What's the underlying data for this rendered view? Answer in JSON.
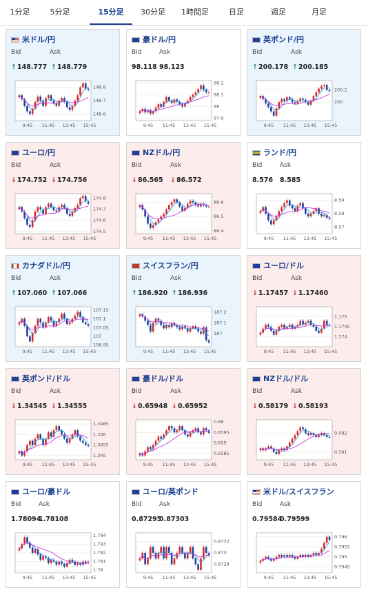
{
  "tabs": [
    {
      "label": "1分足",
      "active": false
    },
    {
      "label": "5分足",
      "active": false
    },
    {
      "label": "15分足",
      "active": true
    },
    {
      "label": "30分足",
      "active": false
    },
    {
      "label": "1時間足",
      "active": false
    },
    {
      "label": "日足",
      "active": false
    },
    {
      "label": "週足",
      "active": false
    },
    {
      "label": "月足",
      "active": false
    }
  ],
  "colors": {
    "up_candle": "#d62728",
    "down_candle": "#1f3f9a",
    "ma_fast": "#3a9bd8",
    "ma_slow": "#c63ad8",
    "up_bg": "#eaf4fd",
    "down_bg": "#fcecec"
  },
  "cards": [
    {
      "pair": "米ドル/円",
      "flag": "us-flag",
      "trend": "up",
      "bid_label": "Bid",
      "ask_label": "Ask",
      "bid": "148.777",
      "ask": "148.779"
    },
    {
      "pair": "豪ドル/円",
      "flag": "au-flag",
      "trend": "flat",
      "bid_label": "Bid",
      "ask_label": "Ask",
      "bid": "98.118",
      "ask": "98.123"
    },
    {
      "pair": "英ポンド/円",
      "flag": "uk-flag",
      "trend": "up",
      "bid_label": "Bid",
      "ask_label": "Ask",
      "bid": "200.178",
      "ask": "200.185"
    },
    {
      "pair": "ユーロ/円",
      "flag": "eu-flag",
      "trend": "down",
      "bid_label": "Bid",
      "ask_label": "Ask",
      "bid": "174.752",
      "ask": "174.756"
    },
    {
      "pair": "NZドル/円",
      "flag": "nz-flag",
      "trend": "down",
      "bid_label": "Bid",
      "ask_label": "Ask",
      "bid": "86.565",
      "ask": "86.572"
    },
    {
      "pair": "ランド/円",
      "flag": "za-flag",
      "trend": "flat",
      "bid_label": "Bid",
      "ask_label": "Ask",
      "bid": "8.576",
      "ask": "8.585"
    },
    {
      "pair": "カナダドル/円",
      "flag": "ca-flag",
      "trend": "up",
      "bid_label": "Bid",
      "ask_label": "Ask",
      "bid": "107.060",
      "ask": "107.066"
    },
    {
      "pair": "スイスフラン/円",
      "flag": "ch-flag",
      "trend": "up",
      "bid_label": "Bid",
      "ask_label": "Ask",
      "bid": "186.920",
      "ask": "186.936"
    },
    {
      "pair": "ユーロ/ドル",
      "flag": "eu-us-flag",
      "trend": "down",
      "bid_label": "Bid",
      "ask_label": "Ask",
      "bid": "1.17457",
      "ask": "1.17460"
    },
    {
      "pair": "英ポンド/ドル",
      "flag": "uk-us-flag",
      "trend": "down",
      "bid_label": "Bid",
      "ask_label": "Ask",
      "bid": "1.34545",
      "ask": "1.34555"
    },
    {
      "pair": "豪ドル/ドル",
      "flag": "au-us-flag",
      "trend": "down",
      "bid_label": "Bid",
      "ask_label": "Ask",
      "bid": "0.65948",
      "ask": "0.65952"
    },
    {
      "pair": "NZドル/ドル",
      "flag": "nz-us-flag",
      "trend": "down",
      "bid_label": "Bid",
      "ask_label": "Ask",
      "bid": "0.58179",
      "ask": "0.58193"
    },
    {
      "pair": "ユーロ/豪ドル",
      "flag": "eu-au-flag",
      "trend": "flat",
      "bid_label": "Bid",
      "ask_label": "Ask",
      "bid": "1.78094",
      "ask": "1.78108"
    },
    {
      "pair": "ユーロ/英ポンド",
      "flag": "eu-uk-flag",
      "trend": "flat",
      "bid_label": "Bid",
      "ask_label": "Ask",
      "bid": "0.87295",
      "ask": "0.87303"
    },
    {
      "pair": "米ドル/スイスフラン",
      "flag": "us-ch-flag",
      "trend": "flat",
      "bid_label": "Bid",
      "ask_label": "Ask",
      "bid": "0.79584",
      "ask": "0.79599"
    }
  ],
  "chart_data": [
    {
      "type": "candlestick",
      "x_ticks": [
        "9:45",
        "11:45",
        "13:45",
        "15:45"
      ],
      "y_ticks": [
        "148.8",
        "148.7",
        "148.6"
      ],
      "ylim": [
        148.55,
        148.85
      ],
      "closes": [
        148.74,
        148.71,
        148.66,
        148.62,
        148.6,
        148.64,
        148.69,
        148.73,
        148.7,
        148.66,
        148.72,
        148.74,
        148.7,
        148.68,
        148.66,
        148.7,
        148.72,
        148.69,
        148.65,
        148.63,
        148.66,
        148.7,
        148.74,
        148.8,
        148.83,
        148.79,
        148.78
      ]
    },
    {
      "type": "candlestick",
      "x_ticks": [
        "9:45",
        "11:45",
        "13:45",
        "15:45"
      ],
      "y_ticks": [
        "98.2",
        "98.1",
        "98",
        "97.9"
      ],
      "ylim": [
        97.88,
        98.22
      ],
      "closes": [
        97.96,
        97.98,
        97.95,
        97.97,
        97.94,
        97.96,
        97.99,
        98.02,
        98.0,
        98.04,
        98.08,
        98.05,
        98.03,
        98.06,
        98.04,
        98.02,
        98.0,
        98.03,
        98.05,
        98.08,
        98.1,
        98.12,
        98.15,
        98.18,
        98.14,
        98.12,
        98.12
      ]
    },
    {
      "type": "candlestick",
      "x_ticks": [
        "9:45",
        "11:45",
        "13:45",
        "15:45"
      ],
      "y_ticks": [
        "200.2",
        "200"
      ],
      "ylim": [
        199.7,
        200.35
      ],
      "closes": [
        200.1,
        200.05,
        199.98,
        199.92,
        199.85,
        199.78,
        199.9,
        200.0,
        200.05,
        200.02,
        200.08,
        200.05,
        200.0,
        199.98,
        200.02,
        200.06,
        200.04,
        200.0,
        199.96,
        200.02,
        200.1,
        200.16,
        200.22,
        200.26,
        200.28,
        200.2,
        200.18
      ]
    },
    {
      "type": "candlestick",
      "x_ticks": [
        "9:45",
        "11:45",
        "13:45",
        "15:45"
      ],
      "y_ticks": [
        "174.8",
        "174.7",
        "174.6",
        "174.5"
      ],
      "ylim": [
        174.48,
        174.84
      ],
      "closes": [
        174.72,
        174.68,
        174.62,
        174.56,
        174.54,
        174.6,
        174.68,
        174.72,
        174.7,
        174.66,
        174.72,
        174.75,
        174.72,
        174.69,
        174.68,
        174.72,
        174.74,
        174.71,
        174.66,
        174.64,
        174.68,
        174.71,
        174.74,
        174.8,
        174.82,
        174.77,
        174.75
      ]
    },
    {
      "type": "candlestick",
      "x_ticks": [
        "9:45",
        "11:45",
        "13:45",
        "15:45"
      ],
      "y_ticks": [
        "86.6",
        "86.5",
        "86.4"
      ],
      "ylim": [
        86.38,
        86.66
      ],
      "closes": [
        86.58,
        86.55,
        86.5,
        86.45,
        86.42,
        86.44,
        86.46,
        86.48,
        86.5,
        86.52,
        86.55,
        86.58,
        86.6,
        86.62,
        86.6,
        86.57,
        86.54,
        86.56,
        86.59,
        86.61,
        86.6,
        86.58,
        86.57,
        86.59,
        86.58,
        86.57,
        86.57
      ]
    },
    {
      "type": "candlestick",
      "x_ticks": [
        "9:45",
        "11:45",
        "13:45",
        "15:45"
      ],
      "y_ticks": [
        "8.59",
        "8.58",
        "8.57"
      ],
      "ylim": [
        8.565,
        8.595
      ],
      "closes": [
        8.582,
        8.585,
        8.58,
        8.575,
        8.572,
        8.575,
        8.578,
        8.582,
        8.585,
        8.588,
        8.59,
        8.586,
        8.584,
        8.582,
        8.586,
        8.588,
        8.584,
        8.58,
        8.578,
        8.58,
        8.582,
        8.584,
        8.58,
        8.578,
        8.579,
        8.577,
        8.576
      ]
    },
    {
      "type": "candlestick",
      "x_ticks": [
        "9:45",
        "11:45",
        "13:45",
        "15:45"
      ],
      "y_ticks": [
        "107.15",
        "107.1",
        "107.05",
        "107",
        "106.95"
      ],
      "ylim": [
        106.94,
        107.17
      ],
      "closes": [
        107.08,
        107.1,
        107.06,
        107.0,
        106.97,
        107.02,
        107.06,
        107.1,
        107.08,
        107.05,
        107.08,
        107.11,
        107.09,
        107.06,
        107.08,
        107.1,
        107.13,
        107.1,
        107.07,
        107.08,
        107.1,
        107.12,
        107.14,
        107.11,
        107.08,
        107.07,
        107.06
      ]
    },
    {
      "type": "candlestick",
      "x_ticks": [
        "9:45",
        "11:45",
        "13:45",
        "15:45"
      ],
      "y_ticks": [
        "187.2",
        "187.1",
        "187"
      ],
      "ylim": [
        186.88,
        187.25
      ],
      "closes": [
        187.18,
        187.16,
        187.12,
        187.08,
        187.02,
        187.1,
        187.14,
        187.12,
        187.08,
        187.05,
        187.08,
        187.06,
        187.1,
        187.08,
        187.06,
        187.04,
        187.07,
        187.05,
        187.02,
        187.05,
        187.07,
        187.05,
        187.02,
        187.0,
        187.06,
        186.94,
        186.92
      ]
    },
    {
      "type": "candlestick",
      "x_ticks": [
        "9:45",
        "11:45",
        "13:45",
        "15:45"
      ],
      "y_ticks": [
        "1.175",
        "1.1745",
        "1.174"
      ],
      "ylim": [
        1.1735,
        1.1755
      ],
      "closes": [
        1.1742,
        1.1744,
        1.1746,
        1.1745,
        1.1743,
        1.1741,
        1.1743,
        1.1745,
        1.1746,
        1.1744,
        1.1745,
        1.1746,
        1.1744,
        1.1745,
        1.1746,
        1.1748,
        1.1746,
        1.1747,
        1.1748,
        1.1746,
        1.1745,
        1.1743,
        1.1742,
        1.1744,
        1.1748,
        1.1746,
        1.17457
      ]
    },
    {
      "type": "candlestick",
      "x_ticks": [
        "9:45",
        "11:45",
        "13:45",
        "15:45"
      ],
      "y_ticks": [
        "1.3465",
        "1.346",
        "1.3455",
        "1.345"
      ],
      "ylim": [
        1.3448,
        1.3467
      ],
      "closes": [
        1.3452,
        1.345,
        1.3452,
        1.3455,
        1.3457,
        1.3455,
        1.3458,
        1.346,
        1.3458,
        1.3455,
        1.3458,
        1.3461,
        1.3459,
        1.3462,
        1.3464,
        1.3462,
        1.346,
        1.3458,
        1.3456,
        1.3458,
        1.346,
        1.3462,
        1.3459,
        1.3457,
        1.3456,
        1.3455,
        1.34545
      ]
    },
    {
      "type": "candlestick",
      "x_ticks": [
        "9:45",
        "11:45",
        "13:45",
        "15:45"
      ],
      "y_ticks": [
        "0.66",
        "0.6595",
        "0.659",
        "0.6585"
      ],
      "ylim": [
        0.6582,
        0.6601
      ],
      "closes": [
        0.6585,
        0.6584,
        0.6586,
        0.6588,
        0.6587,
        0.6589,
        0.6591,
        0.6593,
        0.6592,
        0.6594,
        0.6596,
        0.6598,
        0.6597,
        0.6595,
        0.6596,
        0.6598,
        0.6596,
        0.6594,
        0.6593,
        0.6595,
        0.6596,
        0.6597,
        0.6595,
        0.6594,
        0.6597,
        0.6596,
        0.65948
      ]
    },
    {
      "type": "candlestick",
      "x_ticks": [
        "9:45",
        "11:45",
        "13:45",
        "15:45"
      ],
      "y_ticks": [
        "0.582",
        "0.581"
      ],
      "ylim": [
        0.5806,
        0.5827
      ],
      "closes": [
        0.5812,
        0.5811,
        0.5812,
        0.5813,
        0.5812,
        0.581,
        0.5809,
        0.5811,
        0.5812,
        0.5811,
        0.5813,
        0.5815,
        0.5817,
        0.5819,
        0.5821,
        0.5823,
        0.5822,
        0.582,
        0.5819,
        0.582,
        0.5819,
        0.5818,
        0.5819,
        0.582,
        0.5819,
        0.5818,
        0.58179
      ]
    },
    {
      "type": "candlestick",
      "x_ticks": [
        "9:45",
        "11:45",
        "13:45",
        "15:45"
      ],
      "y_ticks": [
        "1.784",
        "1.783",
        "1.782",
        "1.781",
        "1.78"
      ],
      "ylim": [
        1.7797,
        1.7843
      ],
      "closes": [
        1.7825,
        1.783,
        1.7838,
        1.7832,
        1.7826,
        1.782,
        1.7824,
        1.7818,
        1.7812,
        1.7816,
        1.7814,
        1.7808,
        1.7812,
        1.781,
        1.7806,
        1.781,
        1.7807,
        1.7804,
        1.7808,
        1.7812,
        1.781,
        1.7806,
        1.7808,
        1.7806,
        1.781,
        1.7808,
        1.78094
      ]
    },
    {
      "type": "candlestick",
      "x_ticks": [
        "9:45",
        "11:45",
        "13:45",
        "15:45"
      ],
      "y_ticks": [
        "0.8732",
        "0.873",
        "0.8728"
      ],
      "ylim": [
        0.87265,
        0.87335
      ],
      "closes": [
        0.8729,
        0.873,
        0.8728,
        0.8729,
        0.8731,
        0.873,
        0.8729,
        0.873,
        0.8731,
        0.8729,
        0.8731,
        0.873,
        0.8728,
        0.8729,
        0.873,
        0.8731,
        0.873,
        0.8729,
        0.873,
        0.8731,
        0.8729,
        0.8728,
        0.8727,
        0.8729,
        0.8731,
        0.873,
        0.87295
      ]
    },
    {
      "type": "candlestick",
      "x_ticks": [
        "9:45",
        "11:45",
        "13:45",
        "15:45"
      ],
      "y_ticks": [
        "0.796",
        "0.7955",
        "0.795",
        "0.7945"
      ],
      "ylim": [
        0.7942,
        0.7962
      ],
      "closes": [
        0.7948,
        0.7949,
        0.795,
        0.7949,
        0.7948,
        0.7949,
        0.795,
        0.7951,
        0.795,
        0.7951,
        0.795,
        0.7951,
        0.795,
        0.7949,
        0.795,
        0.7951,
        0.795,
        0.7951,
        0.795,
        0.7951,
        0.7952,
        0.7951,
        0.7952,
        0.7954,
        0.7957,
        0.796,
        0.79584
      ]
    }
  ]
}
